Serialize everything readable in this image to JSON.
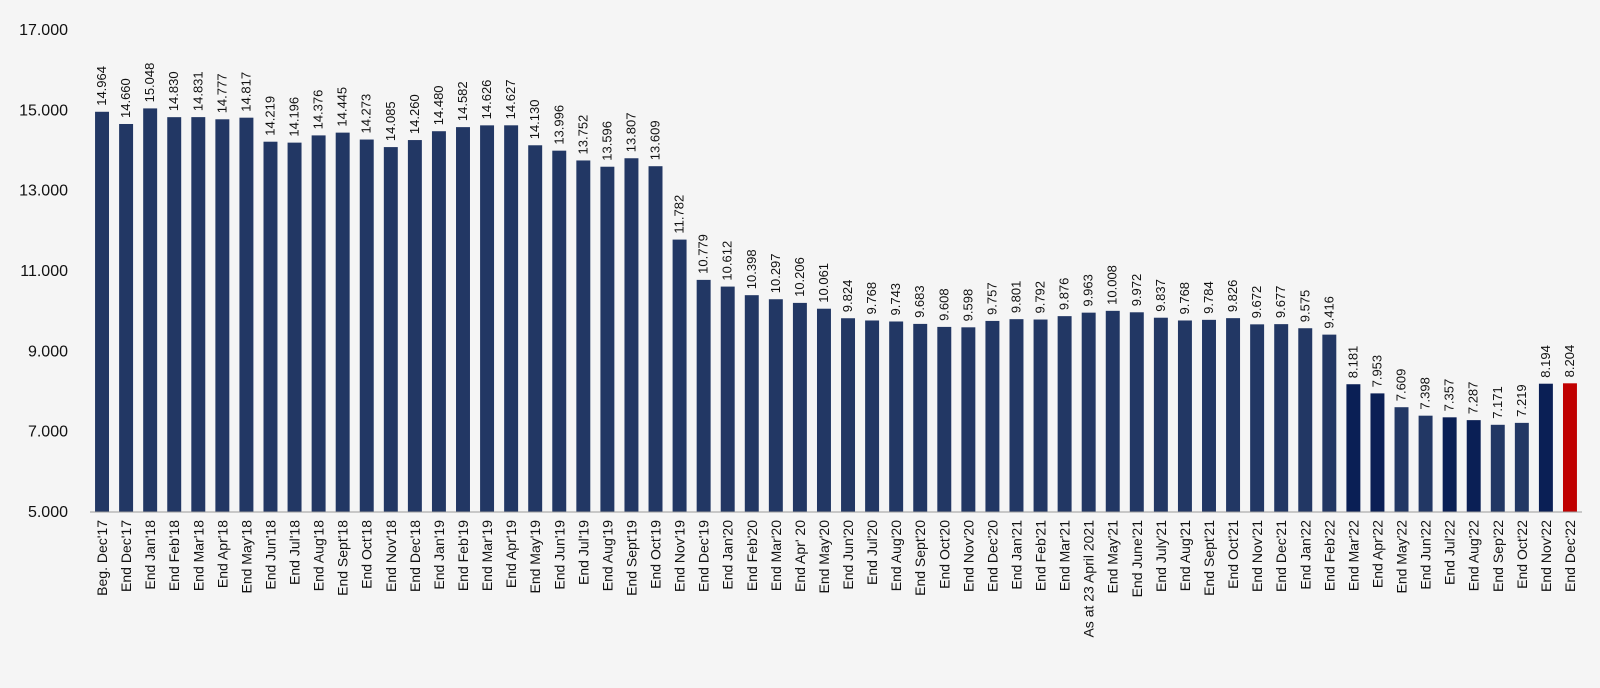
{
  "chart_data": {
    "type": "bar",
    "title": "",
    "xlabel": "",
    "ylabel": "",
    "ylim": [
      5000,
      17000
    ],
    "yticks": [
      5000,
      7000,
      9000,
      11000,
      13000,
      15000,
      17000
    ],
    "ytick_labels": [
      "5.000",
      "7.000",
      "9.000",
      "11.000",
      "13.000",
      "15.000",
      "17.000"
    ],
    "colors": {
      "default": "#223764",
      "highlight": "#0a1f55",
      "latest": "#c00000",
      "axis": "#9a9a9a"
    },
    "categories": [
      "Beg. Dec'17",
      "End Dec'17",
      "End Jan'18",
      "End Feb'18",
      "End Mar'18",
      "End Apr'18",
      "End May'18",
      "End Jun'18",
      "End Jul'18",
      "End Aug'18",
      "End Sept'18",
      "End Oct'18",
      "End Nov'18",
      "End Dec'18",
      "End Jan'19",
      "End Feb'19",
      "End Mar'19",
      "End Apr'19",
      "End May'19",
      "End Jun'19",
      "End Jul'19",
      "End Aug'19",
      "End Sept'19",
      "End Oct'19",
      "End Nov'19",
      "End Dec'19",
      "End Jan'20",
      "End Feb'20",
      "End Mar'20",
      "End Apr' 20",
      "End May'20",
      "End Jun'20",
      "End Jul'20",
      "End Aug'20",
      "End Sept'20",
      "End Oct'20",
      "End Nov'20",
      "End Dec'20",
      "End Jan'21",
      "End Feb'21",
      "End Mar'21",
      "As at 23 April 2021",
      "End May'21",
      "End June'21",
      "End July'21",
      "End Aug'21",
      "End Sept'21",
      "End Oct'21",
      "End Nov'21",
      "End Dec'21",
      "End Jan'22",
      "End Feb'22",
      "End Mar'22",
      "End Apr'22",
      "End May'22",
      "End Jun'22",
      "End Jul'22",
      "End Aug'22",
      "End Sep'22",
      "End Oct'22",
      "End Nov'22",
      "End Dec'22"
    ],
    "values": [
      14964,
      14660,
      15048,
      14830,
      14831,
      14777,
      14817,
      14219,
      14196,
      14376,
      14445,
      14273,
      14085,
      14260,
      14480,
      14582,
      14626,
      14627,
      14130,
      13996,
      13752,
      13596,
      13807,
      13609,
      11782,
      10779,
      10612,
      10398,
      10297,
      10206,
      10061,
      9824,
      9768,
      9743,
      9683,
      9608,
      9598,
      9757,
      9801,
      9792,
      9876,
      9963,
      10008,
      9972,
      9837,
      9768,
      9784,
      9826,
      9672,
      9677,
      9575,
      9416,
      8181,
      7953,
      7609,
      7398,
      7357,
      7287,
      7171,
      7219,
      8194,
      8204
    ],
    "data_labels": [
      "14.964",
      "14.660",
      "15.048",
      "14.830",
      "14.831",
      "14.777",
      "14.817",
      "14.219",
      "14.196",
      "14.376",
      "14.445",
      "14.273",
      "14.085",
      "14.260",
      "14.480",
      "14.582",
      "14.626",
      "14.627",
      "14.130",
      "13.996",
      "13.752",
      "13.596",
      "13.807",
      "13.609",
      "11.782",
      "10.779",
      "10.612",
      "10.398",
      "10.297",
      "10.206",
      "10.061",
      "9.824",
      "9.768",
      "9.743",
      "9.683",
      "9.608",
      "9.598",
      "9.757",
      "9.801",
      "9.792",
      "9.876",
      "9.963",
      "10.008",
      "9.972",
      "9.837",
      "9.768",
      "9.784",
      "9.826",
      "9.672",
      "9.677",
      "9.575",
      "9.416",
      "8.181",
      "7.953",
      "7.609",
      "7.398",
      "7.357",
      "7.287",
      "7.171",
      "7.219",
      "8.194",
      "8.204"
    ],
    "bar_color_keys": [
      "default",
      "default",
      "default",
      "default",
      "default",
      "default",
      "default",
      "default",
      "default",
      "default",
      "default",
      "default",
      "default",
      "default",
      "default",
      "default",
      "default",
      "default",
      "default",
      "default",
      "default",
      "default",
      "default",
      "default",
      "default",
      "default",
      "default",
      "default",
      "default",
      "default",
      "default",
      "default",
      "default",
      "default",
      "default",
      "default",
      "default",
      "default",
      "default",
      "default",
      "default",
      "default",
      "default",
      "default",
      "default",
      "default",
      "default",
      "default",
      "default",
      "default",
      "default",
      "default",
      "highlight",
      "highlight",
      "default",
      "default",
      "highlight",
      "highlight",
      "default",
      "default",
      "highlight",
      "latest"
    ],
    "legend": "none",
    "grid": false
  }
}
